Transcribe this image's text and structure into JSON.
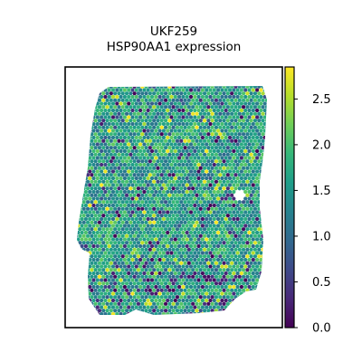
{
  "chart_data": {
    "type": "scatter",
    "title": "UKF259",
    "subtitle": "HSP90AA1 expression",
    "xlabel": "",
    "ylabel": "",
    "grid": false,
    "colorbar": {
      "colormap": "viridis",
      "range": [
        0.0,
        2.85
      ],
      "ticks": [
        0.0,
        0.5,
        1.0,
        1.5,
        2.0,
        2.5
      ],
      "tick_labels": [
        "0.0",
        "0.5",
        "1.0",
        "1.5",
        "2.0",
        "2.5"
      ]
    },
    "value_summary": {
      "typical_value": 1.6,
      "range": [
        0.0,
        2.85
      ]
    }
  },
  "colors": {
    "frame": "#000000",
    "background": "#ffffff",
    "viridis_stops": [
      "#440154",
      "#482878",
      "#3e4a89",
      "#31688e",
      "#26828e",
      "#1f9e89",
      "#35b779",
      "#6ece58",
      "#b5de2b",
      "#fde725"
    ]
  }
}
